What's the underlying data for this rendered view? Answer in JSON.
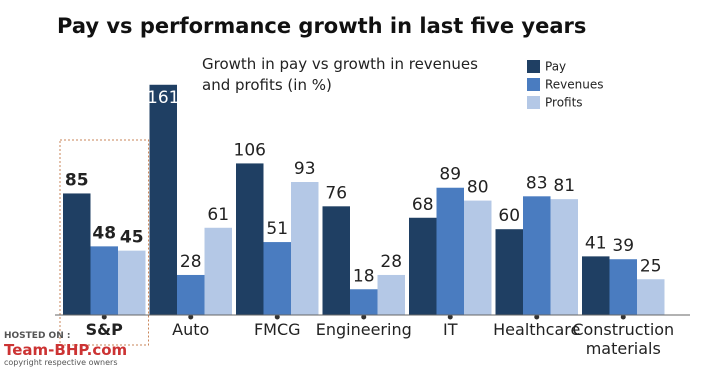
{
  "chart_data": {
    "type": "bar",
    "title": "Pay vs performance growth in last five years",
    "subtitle": "Growth in pay vs growth in revenues and profits (in %)",
    "categories": [
      "S&P",
      "Auto",
      "FMCG",
      "Engineering",
      "IT",
      "Healthcare",
      "Construction materials"
    ],
    "series": [
      {
        "name": "Pay",
        "color": "#1f3f63",
        "values": [
          85,
          161,
          106,
          76,
          68,
          60,
          41
        ]
      },
      {
        "name": "Revenues",
        "color": "#4a7cc0",
        "values": [
          48,
          28,
          51,
          18,
          89,
          83,
          39
        ]
      },
      {
        "name": "Profits",
        "color": "#b4c8e6",
        "values": [
          45,
          61,
          93,
          28,
          80,
          81,
          25
        ]
      }
    ],
    "legend": "top-right",
    "highlight_category": 0
  },
  "watermark": {
    "hosted": "HOSTED ON :",
    "site": "Team-BHP.com",
    "note": "copyright respective owners"
  }
}
